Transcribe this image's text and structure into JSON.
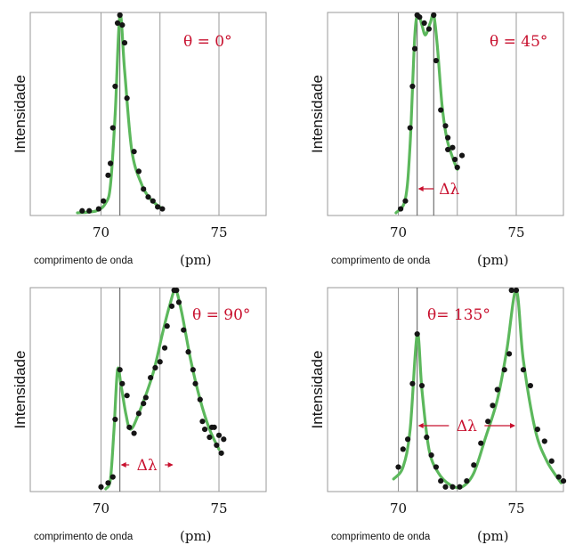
{
  "chart_data": [
    {
      "type": "scatter",
      "panel": "theta-0",
      "annotation": "θ = 0°",
      "xlabel": "comprimento de onda",
      "xunit": "(pm)",
      "ylabel": "Intensidade",
      "xlim": [
        67,
        77
      ],
      "ylim": [
        0,
        1
      ],
      "xticks": [
        "70",
        "75"
      ],
      "reference_lines": [
        70.0,
        70.8,
        72.5,
        75.0
      ],
      "points": [
        [
          69.2,
          0.01
        ],
        [
          69.5,
          0.01
        ],
        [
          69.9,
          0.02
        ],
        [
          70.1,
          0.06
        ],
        [
          70.3,
          0.19
        ],
        [
          70.4,
          0.25
        ],
        [
          70.5,
          0.43
        ],
        [
          70.6,
          0.64
        ],
        [
          70.7,
          0.96
        ],
        [
          70.8,
          1.0
        ],
        [
          70.9,
          0.95
        ],
        [
          71.0,
          0.86
        ],
        [
          71.1,
          0.58
        ],
        [
          71.4,
          0.31
        ],
        [
          71.6,
          0.21
        ],
        [
          71.8,
          0.12
        ],
        [
          72.0,
          0.08
        ],
        [
          72.2,
          0.06
        ],
        [
          72.4,
          0.03
        ],
        [
          72.6,
          0.02
        ]
      ],
      "fit": [
        [
          69.0,
          0.0
        ],
        [
          69.8,
          0.01
        ],
        [
          70.2,
          0.05
        ],
        [
          70.4,
          0.14
        ],
        [
          70.6,
          0.5
        ],
        [
          70.8,
          1.0
        ],
        [
          71.0,
          0.72
        ],
        [
          71.3,
          0.32
        ],
        [
          71.7,
          0.15
        ],
        [
          72.1,
          0.07
        ],
        [
          72.6,
          0.02
        ]
      ]
    },
    {
      "type": "scatter",
      "panel": "theta-45",
      "annotation": "θ = 45°",
      "xlabel": "comprimento de onda",
      "xunit": "(pm)",
      "ylabel": "Intensidade",
      "xlim": [
        67,
        77
      ],
      "ylim": [
        0,
        1
      ],
      "xticks": [
        "70",
        "75"
      ],
      "reference_lines": [
        70.0,
        70.8,
        71.5,
        72.5,
        75.0
      ],
      "delta": {
        "label": "Δλ",
        "from": 70.8,
        "to": 71.5
      },
      "points": [
        [
          70.1,
          0.02
        ],
        [
          70.3,
          0.06
        ],
        [
          70.5,
          0.43
        ],
        [
          70.6,
          0.64
        ],
        [
          70.7,
          0.83
        ],
        [
          70.8,
          1.0
        ],
        [
          70.9,
          0.99
        ],
        [
          71.1,
          0.96
        ],
        [
          71.3,
          0.93
        ],
        [
          71.5,
          1.0
        ],
        [
          71.6,
          0.77
        ],
        [
          71.8,
          0.52
        ],
        [
          72.0,
          0.44
        ],
        [
          72.1,
          0.38
        ],
        [
          72.1,
          0.32
        ],
        [
          72.3,
          0.33
        ],
        [
          72.4,
          0.27
        ],
        [
          72.5,
          0.23
        ],
        [
          72.7,
          0.29
        ]
      ],
      "fit": [
        [
          69.9,
          0.0
        ],
        [
          70.3,
          0.07
        ],
        [
          70.5,
          0.35
        ],
        [
          70.7,
          0.9
        ],
        [
          70.85,
          1.0
        ],
        [
          71.0,
          0.95
        ],
        [
          71.15,
          0.9
        ],
        [
          71.35,
          0.96
        ],
        [
          71.5,
          1.0
        ],
        [
          71.65,
          0.85
        ],
        [
          71.85,
          0.55
        ],
        [
          72.05,
          0.38
        ],
        [
          72.3,
          0.28
        ],
        [
          72.5,
          0.22
        ]
      ]
    },
    {
      "type": "scatter",
      "panel": "theta-90",
      "annotation": "θ = 90°",
      "xlabel": "comprimento de onda",
      "xunit": "(pm)",
      "ylabel": "Intensidade",
      "xlim": [
        67,
        77
      ],
      "ylim": [
        0,
        1
      ],
      "xticks": [
        "70",
        "75"
      ],
      "reference_lines": [
        70.0,
        70.8,
        72.5,
        75.0
      ],
      "delta": {
        "label": "Δλ",
        "from": 70.8,
        "to": 73.1
      },
      "points": [
        [
          70.0,
          0.01
        ],
        [
          70.3,
          0.03
        ],
        [
          70.5,
          0.06
        ],
        [
          70.6,
          0.35
        ],
        [
          70.8,
          0.6
        ],
        [
          70.9,
          0.53
        ],
        [
          71.1,
          0.47
        ],
        [
          71.2,
          0.31
        ],
        [
          71.4,
          0.28
        ],
        [
          71.6,
          0.38
        ],
        [
          71.8,
          0.43
        ],
        [
          71.9,
          0.46
        ],
        [
          72.1,
          0.56
        ],
        [
          72.3,
          0.61
        ],
        [
          72.5,
          0.64
        ],
        [
          72.7,
          0.71
        ],
        [
          72.8,
          0.82
        ],
        [
          73.0,
          0.92
        ],
        [
          73.1,
          1.0
        ],
        [
          73.2,
          1.0
        ],
        [
          73.3,
          0.94
        ],
        [
          73.5,
          0.8
        ],
        [
          73.7,
          0.69
        ],
        [
          73.9,
          0.6
        ],
        [
          74.0,
          0.53
        ],
        [
          74.2,
          0.45
        ],
        [
          74.3,
          0.34
        ],
        [
          74.4,
          0.3
        ],
        [
          74.6,
          0.26
        ],
        [
          74.7,
          0.31
        ],
        [
          74.8,
          0.31
        ],
        [
          74.9,
          0.22
        ],
        [
          75.0,
          0.27
        ],
        [
          75.1,
          0.18
        ],
        [
          75.2,
          0.25
        ]
      ],
      "fit": [
        [
          70.2,
          0.0
        ],
        [
          70.4,
          0.05
        ],
        [
          70.55,
          0.3
        ],
        [
          70.7,
          0.6
        ],
        [
          70.85,
          0.52
        ],
        [
          71.05,
          0.38
        ],
        [
          71.25,
          0.3
        ],
        [
          71.6,
          0.38
        ],
        [
          72.2,
          0.58
        ],
        [
          72.6,
          0.78
        ],
        [
          72.9,
          0.92
        ],
        [
          73.15,
          1.0
        ],
        [
          73.4,
          0.9
        ],
        [
          73.8,
          0.65
        ],
        [
          74.2,
          0.45
        ],
        [
          74.6,
          0.3
        ],
        [
          75.0,
          0.2
        ]
      ]
    },
    {
      "type": "scatter",
      "panel": "theta-135",
      "annotation": "θ= 135°",
      "xlabel": "comprimento de onda",
      "xunit": "(pm)",
      "ylabel": "Intensidade",
      "xlim": [
        67,
        77
      ],
      "ylim": [
        0,
        1
      ],
      "xticks": [
        "70",
        "75"
      ],
      "reference_lines": [
        70.0,
        70.8,
        72.5,
        75.0
      ],
      "delta": {
        "label": "Δλ",
        "from": 70.8,
        "to": 75.0
      },
      "points": [
        [
          70.0,
          0.11
        ],
        [
          70.2,
          0.2
        ],
        [
          70.4,
          0.25
        ],
        [
          70.6,
          0.53
        ],
        [
          70.8,
          0.78
        ],
        [
          71.0,
          0.52
        ],
        [
          71.2,
          0.26
        ],
        [
          71.4,
          0.17
        ],
        [
          71.6,
          0.11
        ],
        [
          71.8,
          0.04
        ],
        [
          72.0,
          0.01
        ],
        [
          72.3,
          0.01
        ],
        [
          72.6,
          0.01
        ],
        [
          72.9,
          0.04
        ],
        [
          73.2,
          0.12
        ],
        [
          73.5,
          0.23
        ],
        [
          73.8,
          0.34
        ],
        [
          74.0,
          0.42
        ],
        [
          74.2,
          0.5
        ],
        [
          74.5,
          0.6
        ],
        [
          74.7,
          0.68
        ],
        [
          74.8,
          1.0
        ],
        [
          75.0,
          1.0
        ],
        [
          75.3,
          0.6
        ],
        [
          75.6,
          0.52
        ],
        [
          75.9,
          0.3
        ],
        [
          76.2,
          0.24
        ],
        [
          76.5,
          0.14
        ],
        [
          76.8,
          0.06
        ],
        [
          77.0,
          0.04
        ]
      ],
      "fit": [
        [
          69.8,
          0.05
        ],
        [
          70.2,
          0.11
        ],
        [
          70.5,
          0.3
        ],
        [
          70.8,
          0.78
        ],
        [
          71.0,
          0.5
        ],
        [
          71.3,
          0.2
        ],
        [
          71.7,
          0.08
        ],
        [
          72.2,
          0.02
        ],
        [
          72.7,
          0.01
        ],
        [
          73.2,
          0.08
        ],
        [
          73.7,
          0.26
        ],
        [
          74.2,
          0.45
        ],
        [
          74.6,
          0.7
        ],
        [
          75.0,
          1.0
        ],
        [
          75.3,
          0.65
        ],
        [
          75.8,
          0.3
        ],
        [
          76.3,
          0.14
        ],
        [
          76.9,
          0.03
        ]
      ]
    }
  ]
}
